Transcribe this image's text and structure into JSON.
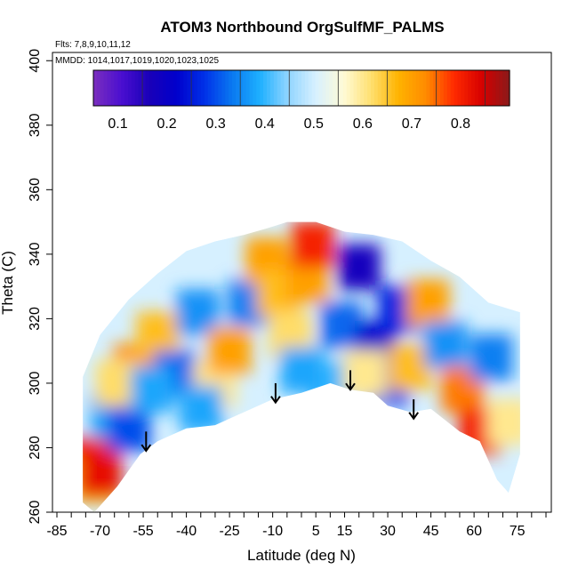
{
  "chart_data": {
    "type": "heatmap",
    "title": "ATOM3 Northbound OrgSulfMF_PALMS",
    "subtitle_flights": "Flts: 7,8,9,10,11,12",
    "subtitle_dates": "MMDD: 1014,1017,1019,1020,1023,1025",
    "xlabel": "Latitude (deg N)",
    "ylabel": "Theta (C)",
    "xlim": [
      -85,
      85
    ],
    "ylim": [
      260,
      402
    ],
    "x_ticks": [
      -85,
      -70,
      -55,
      -40,
      -25,
      -10,
      5,
      15,
      30,
      45,
      60,
      75
    ],
    "y_ticks": [
      260,
      280,
      300,
      320,
      340,
      360,
      380,
      400
    ],
    "colorbar": {
      "range": [
        0.05,
        0.9
      ],
      "ticks": [
        0.1,
        0.2,
        0.3,
        0.4,
        0.5,
        0.6,
        0.7,
        0.8
      ],
      "colors": [
        "#7b2fbe",
        "#4b0fd0",
        "#1a00b8",
        "#0000cc",
        "#0030e8",
        "#0a78f0",
        "#1eb0ff",
        "#8fd4ff",
        "#d6f0ff",
        "#fffbd8",
        "#ffe070",
        "#ffb300",
        "#ff8a00",
        "#ff2a00",
        "#d60000",
        "#8a1a1a"
      ]
    },
    "curtain": {
      "top": [
        [
          -76,
          302
        ],
        [
          -70,
          315
        ],
        [
          -60,
          326
        ],
        [
          -50,
          334
        ],
        [
          -40,
          341
        ],
        [
          -30,
          344
        ],
        [
          -20,
          346
        ],
        [
          -12,
          348
        ],
        [
          -5,
          350
        ],
        [
          5,
          350
        ],
        [
          15,
          347
        ],
        [
          25,
          346
        ],
        [
          35,
          344
        ],
        [
          45,
          338
        ],
        [
          55,
          333
        ],
        [
          65,
          325
        ],
        [
          76,
          322
        ]
      ],
      "bottom": [
        [
          76,
          278
        ],
        [
          72,
          266
        ],
        [
          68,
          270
        ],
        [
          62,
          282
        ],
        [
          55,
          285
        ],
        [
          45,
          292
        ],
        [
          38,
          291
        ],
        [
          30,
          293
        ],
        [
          25,
          297
        ],
        [
          17,
          298
        ],
        [
          10,
          300
        ],
        [
          0,
          297
        ],
        [
          -10,
          295
        ],
        [
          -20,
          291
        ],
        [
          -30,
          287
        ],
        [
          -40,
          286
        ],
        [
          -50,
          282
        ],
        [
          -56,
          278
        ],
        [
          -64,
          268
        ],
        [
          -68,
          264
        ],
        [
          -72,
          260
        ],
        [
          -76,
          263
        ]
      ]
    },
    "fill_cells": [
      {
        "lat": -74,
        "theta": 276,
        "value": 0.8
      },
      {
        "lat": -72,
        "theta": 270,
        "value": 0.68
      },
      {
        "lat": -70,
        "theta": 272,
        "value": 0.82
      },
      {
        "lat": -66,
        "theta": 290,
        "value": 0.38
      },
      {
        "lat": -60,
        "theta": 286,
        "value": 0.3
      },
      {
        "lat": -58,
        "theta": 305,
        "value": 0.72
      },
      {
        "lat": -50,
        "theta": 315,
        "value": 0.66
      },
      {
        "lat": -44,
        "theta": 303,
        "value": 0.32
      },
      {
        "lat": -36,
        "theta": 322,
        "value": 0.36
      },
      {
        "lat": -30,
        "theta": 300,
        "value": 0.6
      },
      {
        "lat": -25,
        "theta": 310,
        "value": 0.7
      },
      {
        "lat": -18,
        "theta": 325,
        "value": 0.34
      },
      {
        "lat": -12,
        "theta": 338,
        "value": 0.7
      },
      {
        "lat": -8,
        "theta": 328,
        "value": 0.66
      },
      {
        "lat": -4,
        "theta": 315,
        "value": 0.62
      },
      {
        "lat": 2,
        "theta": 332,
        "value": 0.7
      },
      {
        "lat": 4,
        "theta": 343,
        "value": 0.8
      },
      {
        "lat": 10,
        "theta": 300,
        "value": 0.4
      },
      {
        "lat": 14,
        "theta": 318,
        "value": 0.32
      },
      {
        "lat": 20,
        "theta": 336,
        "value": 0.18
      },
      {
        "lat": 26,
        "theta": 312,
        "value": 0.22
      },
      {
        "lat": 30,
        "theta": 300,
        "value": 0.3
      },
      {
        "lat": 34,
        "theta": 323,
        "value": 0.26
      },
      {
        "lat": 38,
        "theta": 305,
        "value": 0.66
      },
      {
        "lat": 44,
        "theta": 325,
        "value": 0.7
      },
      {
        "lat": 50,
        "theta": 312,
        "value": 0.36
      },
      {
        "lat": 56,
        "theta": 298,
        "value": 0.74
      },
      {
        "lat": 62,
        "theta": 285,
        "value": 0.8
      },
      {
        "lat": 66,
        "theta": 308,
        "value": 0.34
      },
      {
        "lat": 72,
        "theta": 288,
        "value": 0.6
      },
      {
        "lat": -35,
        "theta": 292,
        "value": 0.38
      },
      {
        "lat": 0,
        "theta": 304,
        "value": 0.38
      },
      {
        "lat": 22,
        "theta": 303,
        "value": 0.6
      },
      {
        "lat": -64,
        "theta": 300,
        "value": 0.62
      },
      {
        "lat": -52,
        "theta": 298,
        "value": 0.38
      }
    ],
    "arrows": [
      {
        "lat": -54,
        "theta": 285,
        "length": 6
      },
      {
        "lat": -9,
        "theta": 300,
        "length": 6
      },
      {
        "lat": 17,
        "theta": 304,
        "length": 6
      },
      {
        "lat": 39,
        "theta": 295,
        "length": 6
      }
    ]
  }
}
